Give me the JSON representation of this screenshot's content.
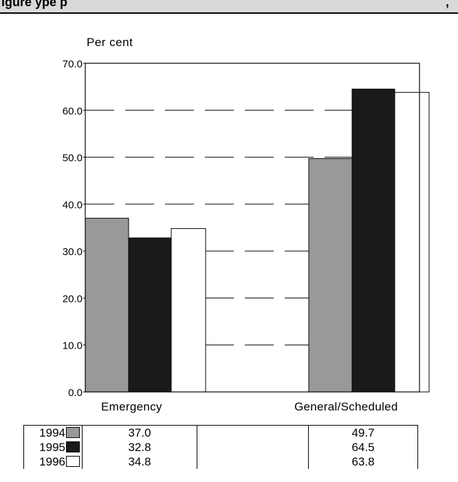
{
  "header": {
    "title": "igure      ype   p",
    "suffix": ","
  },
  "chart_data": {
    "type": "bar",
    "ylabel": "Per cent",
    "ylim": [
      0,
      70
    ],
    "yticks": [
      "0.0",
      "10.0",
      "20.0",
      "30.0",
      "40.0",
      "50.0",
      "60.0",
      "70.0"
    ],
    "categories": [
      "Emergency",
      "General/Scheduled"
    ],
    "series": [
      {
        "name": "1994",
        "values": [
          37.0,
          49.7
        ],
        "color": "#999999"
      },
      {
        "name": "1995",
        "values": [
          32.8,
          64.5
        ],
        "color": "#1a1a1a"
      },
      {
        "name": "1996",
        "values": [
          34.8,
          63.8
        ],
        "color": "#ffffff"
      }
    ],
    "grid": true,
    "legend": "data table below chart"
  },
  "table": {
    "rows": [
      {
        "year": "1994",
        "values": [
          "37.0",
          "49.7"
        ]
      },
      {
        "year": "1995",
        "values": [
          "32.8",
          "64.5"
        ]
      },
      {
        "year": "1996",
        "values": [
          "34.8",
          "63.8"
        ]
      }
    ]
  }
}
